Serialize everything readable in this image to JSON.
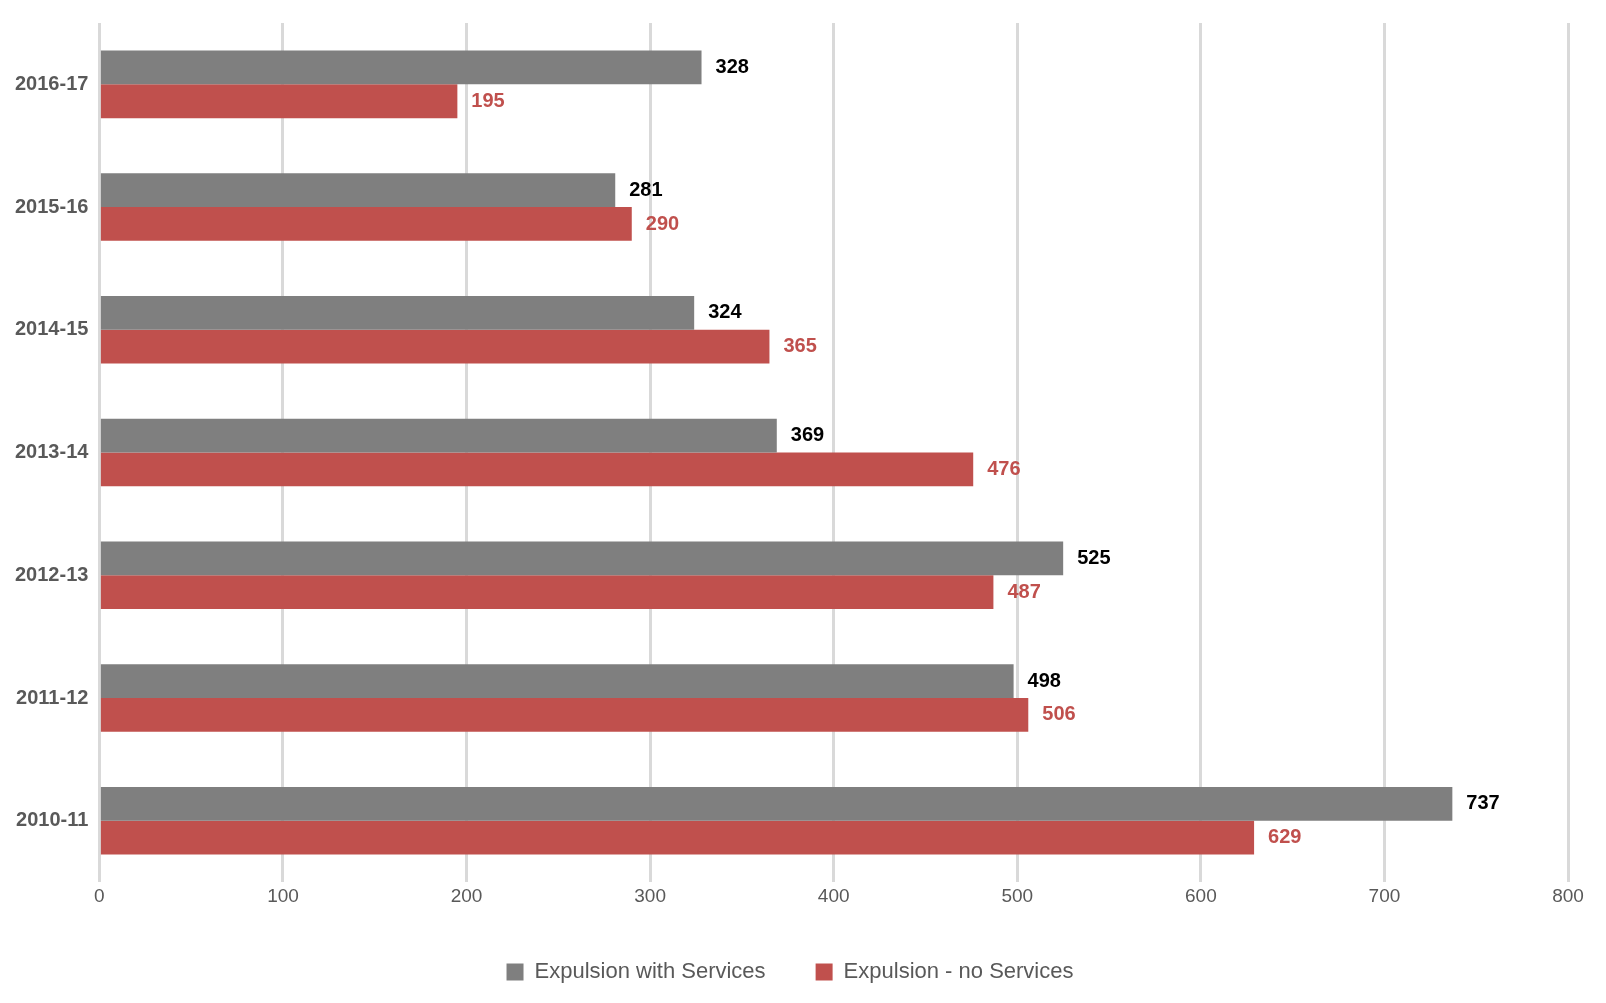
{
  "chart_data": {
    "type": "bar",
    "orientation": "horizontal",
    "categories": [
      "2016-17",
      "2015-16",
      "2014-15",
      "2013-14",
      "2012-13",
      "2011-12",
      "2010-11"
    ],
    "series": [
      {
        "name": "Expulsion with Services",
        "color": "#7f7f7f",
        "values": [
          328,
          281,
          324,
          369,
          525,
          498,
          737
        ]
      },
      {
        "name": "Expulsion - no Services",
        "color": "#c0504d",
        "values": [
          195,
          290,
          365,
          476,
          487,
          506,
          629
        ]
      }
    ],
    "xlim": [
      0,
      800
    ],
    "xticks": [
      0,
      100,
      200,
      300,
      400,
      500,
      600,
      700,
      800
    ],
    "grid": "x",
    "legend": "bottom",
    "data_labels": true
  }
}
